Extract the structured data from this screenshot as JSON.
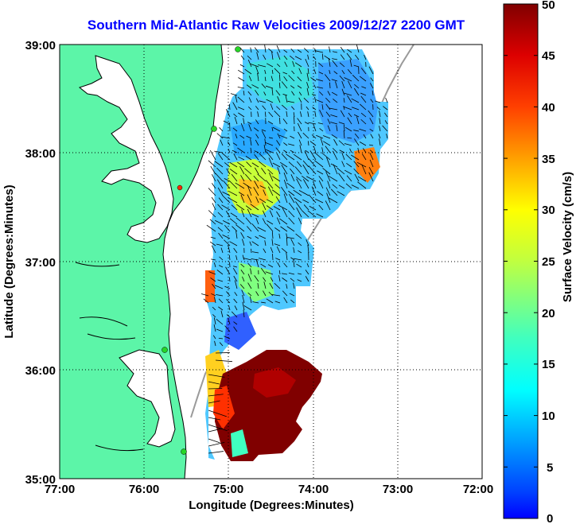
{
  "title": "Southern Mid-Atlantic Raw Velocities 2009/12/27 2200 GMT",
  "x_axis": {
    "label": "Longitude (Degrees:Minutes)",
    "ticks": [
      "77:00",
      "76:00",
      "75:00",
      "74:00",
      "73:00",
      "72:00"
    ]
  },
  "y_axis": {
    "label": "Latitude (Degrees:Minutes)",
    "ticks": [
      "39:00",
      "38:00",
      "37:00",
      "36:00",
      "35:00"
    ]
  },
  "colorbar": {
    "label": "Surface Velocity (cm/s)",
    "ticks": [
      "50",
      "45",
      "40",
      "35",
      "30",
      "25",
      "20",
      "15",
      "10",
      "5",
      "0"
    ],
    "range": [
      0,
      50
    ],
    "colormap": "jet"
  },
  "colors": {
    "land": "#5cf5a8",
    "coastline": "#000000",
    "title": "#0000ff",
    "grid": "#000000",
    "bathymetry": "#9a9a9a",
    "station_green": "#27d627",
    "station_red": "#ff2a00"
  },
  "map": {
    "lon_range": [
      -77,
      -72
    ],
    "lat_range": [
      35,
      39
    ],
    "grid": "dotted",
    "arrow_color": "black"
  }
}
